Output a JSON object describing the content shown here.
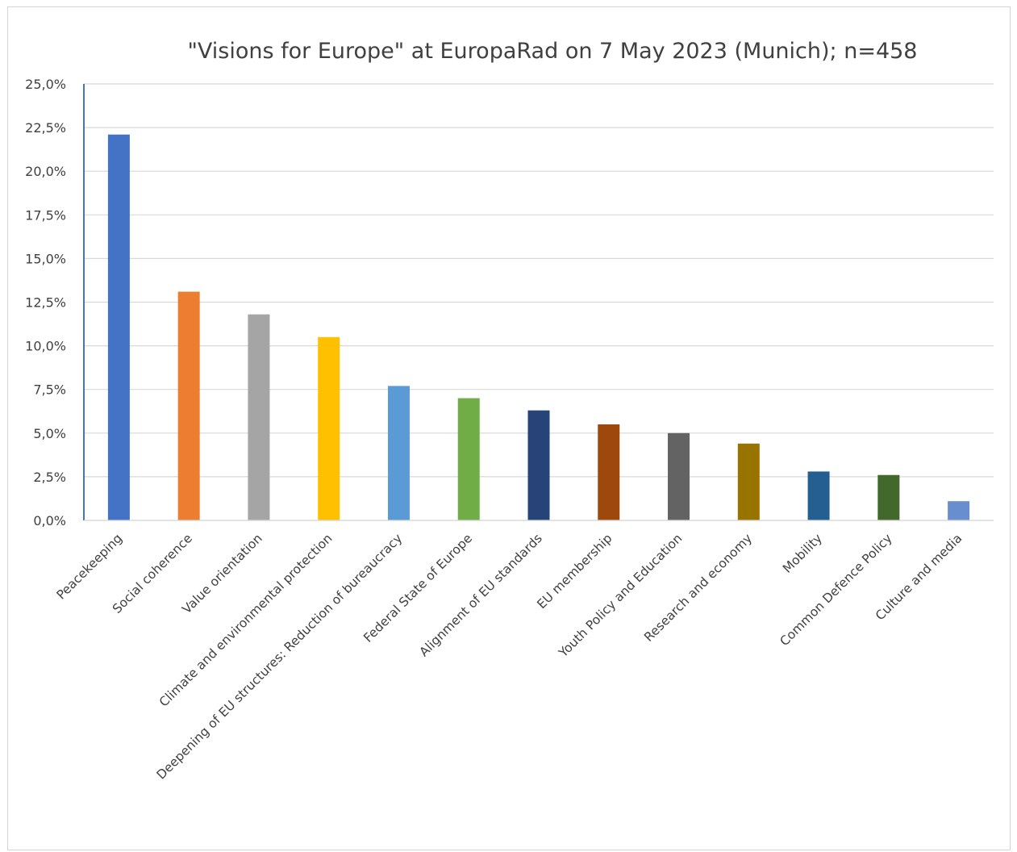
{
  "chart_data": {
    "type": "bar",
    "title": "\"Visions for Europe\" at EuropaRad on 7 May 2023 (Munich); n=458",
    "xlabel": "",
    "ylabel": "",
    "ylim": [
      0,
      25
    ],
    "grid": true,
    "legend": "none",
    "yticks": [
      "0,0%",
      "2,5%",
      "5,0%",
      "7,5%",
      "10,0%",
      "12,5%",
      "15,0%",
      "17,5%",
      "20,0%",
      "22,5%",
      "25,0%"
    ],
    "categories": [
      "Peacekeeping",
      "Social coherence",
      "Value orientation",
      "Climate and environmental protection",
      "Deepening of EU structures: Reduction of bureaucracy",
      "Federal State of Europe",
      "Alignment of EU standards",
      "EU membership",
      "Youth Policy and Education",
      "Research and economy",
      "Mobility",
      "Common Defence Policy",
      "Culture and media"
    ],
    "values": [
      22.1,
      13.1,
      11.8,
      10.5,
      7.7,
      7.0,
      6.3,
      5.5,
      5.0,
      4.4,
      2.8,
      2.6,
      1.1
    ],
    "colors": [
      "#4472c4",
      "#ed7d31",
      "#a5a5a5",
      "#ffc000",
      "#5b9bd5",
      "#70ad47",
      "#264478",
      "#9e480e",
      "#636363",
      "#997300",
      "#255e91",
      "#43682b",
      "#698ed0"
    ]
  }
}
